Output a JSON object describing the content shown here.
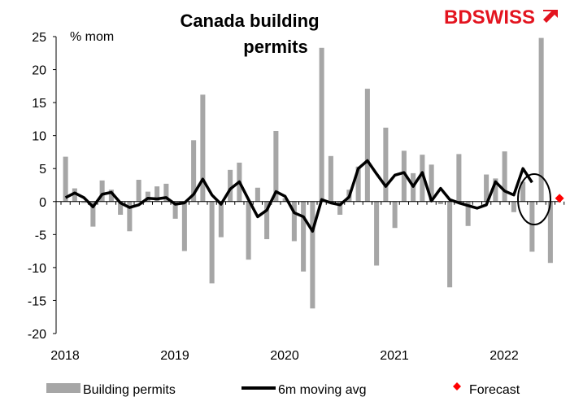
{
  "brand": {
    "name": "BDSWISS",
    "name_bd": "BD",
    "name_swiss": "SWISS",
    "color": "#e3141f"
  },
  "chart_data": {
    "type": "bar",
    "title": "Canada building permits",
    "title_lines": [
      "Canada building",
      "permits"
    ],
    "ylabel": "% mom",
    "ylim": [
      -20,
      25
    ],
    "yticks": [
      -20,
      -15,
      -10,
      -5,
      0,
      5,
      10,
      15,
      20,
      25
    ],
    "xticks": [
      {
        "label": "2018",
        "month_index": 0
      },
      {
        "label": "2019",
        "month_index": 12
      },
      {
        "label": "2020",
        "month_index": 24
      },
      {
        "label": "2021",
        "month_index": 36
      },
      {
        "label": "2022",
        "month_index": 48
      }
    ],
    "start": "2018-01",
    "grid": false,
    "legend_position": "bottom",
    "annotation": "circle around forecast point",
    "series": [
      {
        "name": "Building permits",
        "type": "bar",
        "color": "#a6a6a6",
        "values": [
          6.8,
          2.0,
          -0.2,
          -3.8,
          3.2,
          1.8,
          -2.0,
          -4.5,
          3.3,
          1.5,
          2.3,
          2.7,
          -2.6,
          -7.5,
          9.3,
          16.2,
          -12.4,
          -5.4,
          4.8,
          5.9,
          -8.8,
          2.1,
          -5.7,
          10.7,
          0.5,
          -6.0,
          -10.6,
          -16.2,
          23.3,
          6.9,
          -2.0,
          1.8,
          5.3,
          17.1,
          -9.7,
          11.2,
          -4.0,
          7.7,
          4.3,
          7.1,
          5.6,
          -0.4,
          -13.0,
          7.2,
          -3.7,
          0.0,
          4.1,
          3.5,
          7.6,
          -1.6,
          3.0,
          -7.6,
          24.8,
          -9.3
        ]
      },
      {
        "name": "6m moving avg",
        "type": "line",
        "color": "#000000",
        "values": [
          0.6,
          1.3,
          0.6,
          -0.8,
          1.1,
          1.4,
          -0.2,
          -0.9,
          -0.5,
          0.5,
          0.4,
          0.6,
          -0.4,
          -0.2,
          1.1,
          3.4,
          1.0,
          -0.4,
          1.9,
          3.0,
          0.3,
          -2.3,
          -1.3,
          1.5,
          0.8,
          -1.7,
          -2.3,
          -4.5,
          0.3,
          -0.2,
          -0.5,
          0.7,
          5.0,
          6.2,
          4.2,
          2.3,
          4.0,
          4.4,
          2.3,
          4.4,
          0.1,
          2.0,
          0.3,
          -0.2,
          -0.6,
          -1.0,
          -0.5,
          3.0,
          1.6,
          1.0,
          5.0,
          2.9
        ]
      },
      {
        "name": "Forecast",
        "type": "scatter",
        "color": "#ff0000",
        "points": [
          {
            "month_index": 54,
            "value": 0.5
          }
        ]
      }
    ]
  }
}
